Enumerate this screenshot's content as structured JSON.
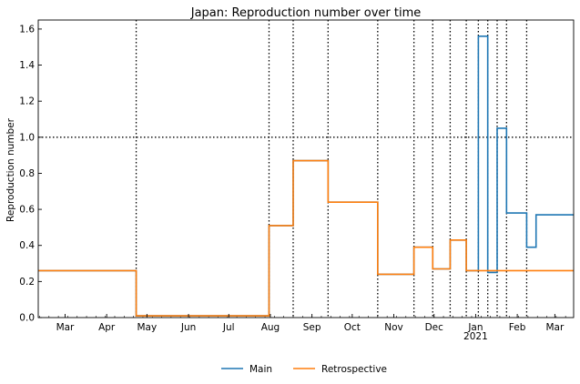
{
  "chart_data": {
    "type": "line",
    "title": "Japan: Reproduction number over time",
    "xlabel": "",
    "ylabel": "Reproduction number",
    "xlim": [
      "2020-02-10",
      "2021-03-15"
    ],
    "ylim": [
      0,
      1.65
    ],
    "y_ticks": [
      0.0,
      0.2,
      0.4,
      0.6,
      0.8,
      1.0,
      1.2,
      1.4,
      1.6
    ],
    "x_ticks": [
      {
        "date": "2020-03-01",
        "label": "Mar"
      },
      {
        "date": "2020-04-01",
        "label": "Apr"
      },
      {
        "date": "2020-05-01",
        "label": "May"
      },
      {
        "date": "2020-06-01",
        "label": "Jun"
      },
      {
        "date": "2020-07-01",
        "label": "Jul"
      },
      {
        "date": "2020-08-01",
        "label": "Aug"
      },
      {
        "date": "2020-09-01",
        "label": "Sep"
      },
      {
        "date": "2020-10-01",
        "label": "Oct"
      },
      {
        "date": "2020-11-01",
        "label": "Nov"
      },
      {
        "date": "2020-12-01",
        "label": "Dec"
      },
      {
        "date": "2021-01-01",
        "label": "Jan",
        "sublabel": "2021"
      },
      {
        "date": "2021-02-01",
        "label": "Feb"
      },
      {
        "date": "2021-03-01",
        "label": "Mar"
      }
    ],
    "reference_line": 1.0,
    "changepoints": [
      "2020-04-23",
      "2020-07-31",
      "2020-08-18",
      "2020-09-13",
      "2020-10-20",
      "2020-11-16",
      "2020-11-30",
      "2020-12-13",
      "2020-12-25",
      "2021-01-03",
      "2021-01-10",
      "2021-01-17",
      "2021-01-24",
      "2021-02-08"
    ],
    "legend_position": "bottom-center",
    "series": [
      {
        "name": "Main",
        "color": "#1f77b4",
        "steps": [
          {
            "start": "2020-02-10",
            "end": "2020-04-23",
            "value": 0.26
          },
          {
            "start": "2020-04-23",
            "end": "2020-07-31",
            "value": 0.01
          },
          {
            "start": "2020-07-31",
            "end": "2020-08-18",
            "value": 0.51
          },
          {
            "start": "2020-08-18",
            "end": "2020-09-13",
            "value": 0.87
          },
          {
            "start": "2020-09-13",
            "end": "2020-10-20",
            "value": 0.64
          },
          {
            "start": "2020-10-20",
            "end": "2020-11-16",
            "value": 0.24
          },
          {
            "start": "2020-11-16",
            "end": "2020-11-30",
            "value": 0.39
          },
          {
            "start": "2020-11-30",
            "end": "2020-12-13",
            "value": 0.27
          },
          {
            "start": "2020-12-13",
            "end": "2020-12-25",
            "value": 0.43
          },
          {
            "start": "2020-12-25",
            "end": "2021-01-03",
            "value": 0.26
          },
          {
            "start": "2021-01-03",
            "end": "2021-01-10",
            "value": 1.56
          },
          {
            "start": "2021-01-10",
            "end": "2021-01-17",
            "value": 0.25
          },
          {
            "start": "2021-01-17",
            "end": "2021-01-24",
            "value": 1.05
          },
          {
            "start": "2021-01-24",
            "end": "2021-02-08",
            "value": 0.58
          },
          {
            "start": "2021-02-08",
            "end": "2021-02-15",
            "value": 0.39
          },
          {
            "start": "2021-02-15",
            "end": "2021-03-15",
            "value": 0.57
          }
        ]
      },
      {
        "name": "Retrospective",
        "color": "#ff7f0e",
        "steps": [
          {
            "start": "2020-02-10",
            "end": "2020-04-23",
            "value": 0.26
          },
          {
            "start": "2020-04-23",
            "end": "2020-07-31",
            "value": 0.01
          },
          {
            "start": "2020-07-31",
            "end": "2020-08-18",
            "value": 0.51
          },
          {
            "start": "2020-08-18",
            "end": "2020-09-13",
            "value": 0.87
          },
          {
            "start": "2020-09-13",
            "end": "2020-10-20",
            "value": 0.64
          },
          {
            "start": "2020-10-20",
            "end": "2020-11-16",
            "value": 0.24
          },
          {
            "start": "2020-11-16",
            "end": "2020-11-30",
            "value": 0.39
          },
          {
            "start": "2020-11-30",
            "end": "2020-12-13",
            "value": 0.27
          },
          {
            "start": "2020-12-13",
            "end": "2020-12-25",
            "value": 0.43
          },
          {
            "start": "2020-12-25",
            "end": "2021-03-15",
            "value": 0.26
          }
        ]
      }
    ]
  }
}
